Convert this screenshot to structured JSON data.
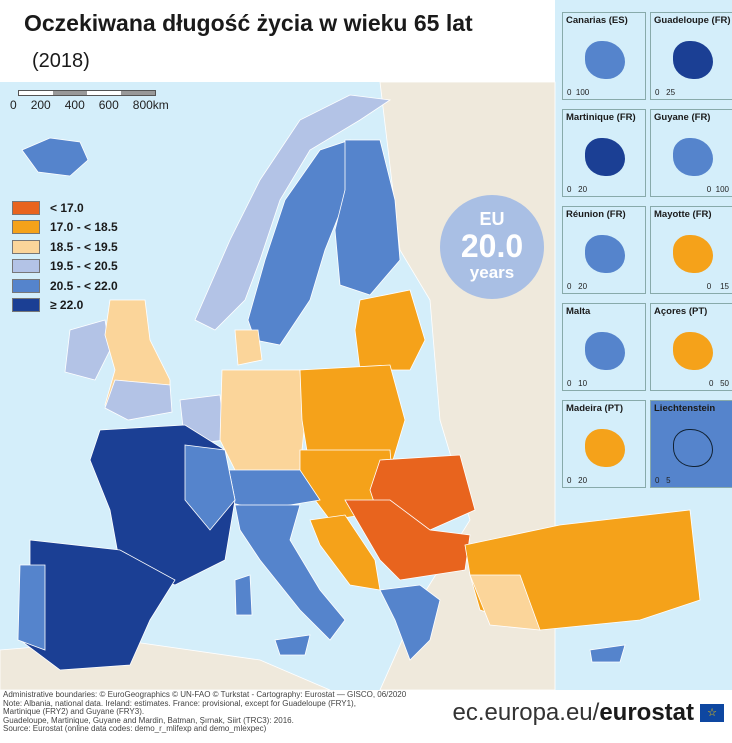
{
  "title": "Oczekiwana długość życia w wieku 65 lat",
  "subtitle": "(2018)",
  "scale_bar": {
    "labels": [
      "0",
      "200",
      "400",
      "600",
      "800km"
    ]
  },
  "legend": [
    {
      "label": "< 17.0",
      "color": "#e8641e"
    },
    {
      "label": "17.0 - < 18.5",
      "color": "#f5a21a"
    },
    {
      "label": "18.5 - < 19.5",
      "color": "#fbd59a"
    },
    {
      "label": "19.5 - < 20.5",
      "color": "#b3c3e6"
    },
    {
      "label": "20.5 - < 22.0",
      "color": "#5584cc"
    },
    {
      "label": "≥ 22.0",
      "color": "#1b3f94"
    }
  ],
  "eu_badge": {
    "top": "EU",
    "value": "20.0",
    "unit": "years"
  },
  "insets": [
    {
      "name": "Canarias (ES)",
      "scale": "0  100",
      "class": 4
    },
    {
      "name": "Guadeloupe (FR)",
      "scale": "0   25",
      "class": 5
    },
    {
      "name": "Martinique (FR)",
      "scale": "0   20",
      "class": 5
    },
    {
      "name": "Guyane (FR)",
      "scale": "0  100",
      "class": 4
    },
    {
      "name": "Réunion (FR)",
      "scale": "0   20",
      "class": 4
    },
    {
      "name": "Mayotte (FR)",
      "scale": "0    15",
      "class": 1
    },
    {
      "name": "Malta",
      "scale": "0   10",
      "class": 4
    },
    {
      "name": "Açores (PT)",
      "scale": "0   50",
      "class": 1
    },
    {
      "name": "Madeira (PT)",
      "scale": "0   20",
      "class": 1
    },
    {
      "name": "Liechtenstein",
      "scale": "0   5",
      "class": 4
    }
  ],
  "footer": {
    "notes": [
      "Administrative boundaries: © EuroGeographics © UN-FAO © Turkstat - Cartography: Eurostat — GISCO, 06/2020",
      "Note: Albania, national data. Ireland: estimates. France: provisional, except for Guadeloupe (FRY1),",
      "Martinique (FRY2) and Guyane (FRY3).",
      "Guadeloupe, Martinique, Guyane and Mardin, Batman, Şırnak, Siirt (TRC3): 2016.",
      "Source: Eurostat (online data codes: demo_r_mlifexp and demo_mlexpec)"
    ],
    "brand_prefix": "ec.europa.eu/",
    "brand_name": "eurostat"
  },
  "colors": {
    "sea": "#d4eefa",
    "non_eu_land": "#efe9dc"
  }
}
